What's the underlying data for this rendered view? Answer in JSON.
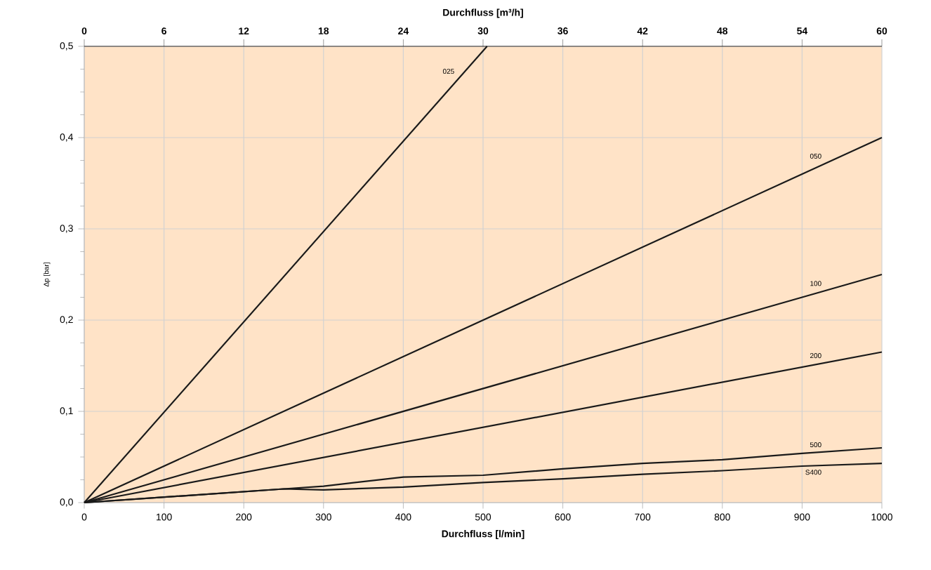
{
  "chart_data": {
    "type": "line",
    "xlabel": "Durchfluss [l/min]",
    "ylabel": "Δp [bar]",
    "x2label": "Durchfluss [m³/h]",
    "xlim": [
      0,
      1000
    ],
    "xticks": [
      0,
      100,
      200,
      300,
      400,
      500,
      600,
      700,
      800,
      900,
      1000
    ],
    "x2lim": [
      0,
      60
    ],
    "x2ticks": [
      0,
      6,
      12,
      18,
      24,
      30,
      36,
      42,
      48,
      54,
      60
    ],
    "ylim": [
      0,
      0.5
    ],
    "yticks": [
      {
        "value": 0,
        "label": "0,0"
      },
      {
        "value": 0.1,
        "label": "0,1"
      },
      {
        "value": 0.2,
        "label": "0,2"
      },
      {
        "value": 0.3,
        "label": "0,3"
      },
      {
        "value": 0.4,
        "label": "0,4"
      },
      {
        "value": 0.5,
        "label": "0,5"
      }
    ],
    "grid": true,
    "marker": "none",
    "line_style": "solid",
    "series": [
      {
        "name": "025",
        "color": "#1a1a1a",
        "x": [
          0,
          505
        ],
        "values": [
          0,
          0.5
        ]
      },
      {
        "name": "050",
        "color": "#1a1a1a",
        "x": [
          0,
          1000
        ],
        "values": [
          0,
          0.4
        ]
      },
      {
        "name": "100",
        "color": "#1a1a1a",
        "x": [
          0,
          1000
        ],
        "values": [
          0,
          0.25
        ]
      },
      {
        "name": "200",
        "color": "#1a1a1a",
        "x": [
          0,
          1000
        ],
        "values": [
          0,
          0.165
        ]
      },
      {
        "name": "500",
        "color": "#1a1a1a",
        "x": [
          0,
          250,
          300,
          400,
          500,
          600,
          700,
          800,
          900,
          1000
        ],
        "values": [
          0,
          0.015,
          0.018,
          0.028,
          0.03,
          0.037,
          0.043,
          0.047,
          0.054,
          0.06
        ]
      },
      {
        "name": "S400",
        "color": "#1a1a1a",
        "x": [
          0,
          250,
          300,
          400,
          500,
          600,
          700,
          800,
          900,
          1000
        ],
        "values": [
          0,
          0.015,
          0.014,
          0.017,
          0.022,
          0.026,
          0.031,
          0.035,
          0.04,
          0.043
        ]
      }
    ]
  }
}
